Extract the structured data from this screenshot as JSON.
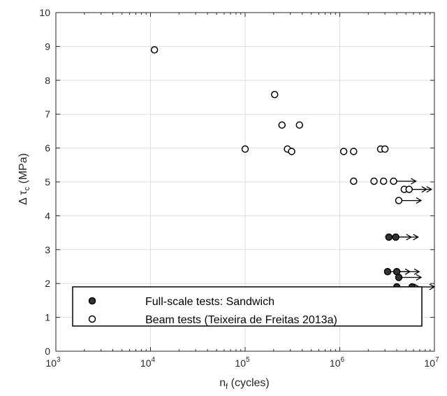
{
  "chart_data": {
    "type": "scatter",
    "x_scale": "log",
    "xlim": [
      1000,
      10000000
    ],
    "ylim": [
      0,
      10
    ],
    "grid": true,
    "legend_placement": "bottom",
    "x_ticks": [
      {
        "value": 1000,
        "base": "10",
        "exp": "3"
      },
      {
        "value": 10000,
        "base": "10",
        "exp": "4"
      },
      {
        "value": 100000,
        "base": "10",
        "exp": "5"
      },
      {
        "value": 1000000,
        "base": "10",
        "exp": "6"
      },
      {
        "value": 10000000,
        "base": "10",
        "exp": "7"
      }
    ],
    "y_ticks": [
      0,
      1,
      2,
      3,
      4,
      5,
      6,
      7,
      8,
      9,
      10
    ],
    "xlabel": {
      "main": "n",
      "sub": "f",
      "rest": " (cycles)"
    },
    "ylabel": {
      "prefix": "Δ τ",
      "sub": "c",
      "rest": " (MPa)"
    },
    "series": [
      {
        "name": "Full-scale tests: Sandwich",
        "marker": "filled-circle",
        "color": "#333333",
        "points": [
          {
            "x": 3300000,
            "y": 3.37,
            "runout": true
          },
          {
            "x": 3900000,
            "y": 3.37,
            "runout": true
          },
          {
            "x": 3200000,
            "y": 2.35,
            "runout": true
          },
          {
            "x": 4000000,
            "y": 2.35,
            "runout": true
          },
          {
            "x": 4200000,
            "y": 2.18,
            "runout": true
          },
          {
            "x": 4000000,
            "y": 1.9,
            "runout": true
          },
          {
            "x": 5800000,
            "y": 1.9,
            "runout": true
          }
        ]
      },
      {
        "name": "Beam tests (Teixeira de Freitas 2013a)",
        "marker": "open-circle",
        "color": "#000000",
        "points": [
          {
            "x": 11000,
            "y": 8.9,
            "runout": false
          },
          {
            "x": 100000,
            "y": 5.97,
            "runout": false
          },
          {
            "x": 205000,
            "y": 7.58,
            "runout": false
          },
          {
            "x": 245000,
            "y": 6.68,
            "runout": false
          },
          {
            "x": 280000,
            "y": 5.97,
            "runout": false
          },
          {
            "x": 310000,
            "y": 5.9,
            "runout": false
          },
          {
            "x": 375000,
            "y": 6.68,
            "runout": false
          },
          {
            "x": 1100000,
            "y": 5.9,
            "runout": false
          },
          {
            "x": 1400000,
            "y": 5.9,
            "runout": false
          },
          {
            "x": 1400000,
            "y": 5.02,
            "runout": false
          },
          {
            "x": 2300000,
            "y": 5.02,
            "runout": false
          },
          {
            "x": 2700000,
            "y": 5.97,
            "runout": false
          },
          {
            "x": 3000000,
            "y": 5.97,
            "runout": false
          },
          {
            "x": 2900000,
            "y": 5.02,
            "runout": false
          },
          {
            "x": 3700000,
            "y": 5.02,
            "runout": true
          },
          {
            "x": 4800000,
            "y": 4.78,
            "runout": true
          },
          {
            "x": 5400000,
            "y": 4.78,
            "runout": true
          },
          {
            "x": 4200000,
            "y": 4.45,
            "runout": true
          }
        ]
      }
    ]
  }
}
